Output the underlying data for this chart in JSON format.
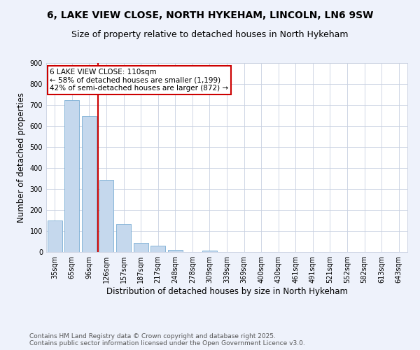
{
  "title": "6, LAKE VIEW CLOSE, NORTH HYKEHAM, LINCOLN, LN6 9SW",
  "subtitle": "Size of property relative to detached houses in North Hykeham",
  "xlabel": "Distribution of detached houses by size in North Hykeham",
  "ylabel": "Number of detached properties",
  "categories": [
    "35sqm",
    "65sqm",
    "96sqm",
    "126sqm",
    "157sqm",
    "187sqm",
    "217sqm",
    "248sqm",
    "278sqm",
    "309sqm",
    "339sqm",
    "369sqm",
    "400sqm",
    "430sqm",
    "461sqm",
    "491sqm",
    "521sqm",
    "552sqm",
    "582sqm",
    "613sqm",
    "643sqm"
  ],
  "values": [
    150,
    725,
    648,
    343,
    133,
    42,
    31,
    11,
    0,
    7,
    0,
    0,
    0,
    0,
    0,
    0,
    0,
    0,
    0,
    0,
    0
  ],
  "bar_color": "#c5d8ed",
  "bar_edge_color": "#7aadd4",
  "red_line_x": 2.5,
  "annotation_text": "6 LAKE VIEW CLOSE: 110sqm\n← 58% of detached houses are smaller (1,199)\n42% of semi-detached houses are larger (872) →",
  "annotation_box_color": "#ffffff",
  "annotation_edge_color": "#cc0000",
  "red_line_color": "#cc0000",
  "footer_line1": "Contains HM Land Registry data © Crown copyright and database right 2025.",
  "footer_line2": "Contains public sector information licensed under the Open Government Licence v3.0.",
  "bg_color": "#eef2fb",
  "plot_bg_color": "#ffffff",
  "grid_color": "#c8d0e0",
  "ylim": [
    0,
    900
  ],
  "title_fontsize": 10,
  "subtitle_fontsize": 9,
  "ylabel_fontsize": 8.5,
  "xlabel_fontsize": 8.5,
  "tick_fontsize": 7,
  "footer_fontsize": 6.5,
  "annot_fontsize": 7.5
}
